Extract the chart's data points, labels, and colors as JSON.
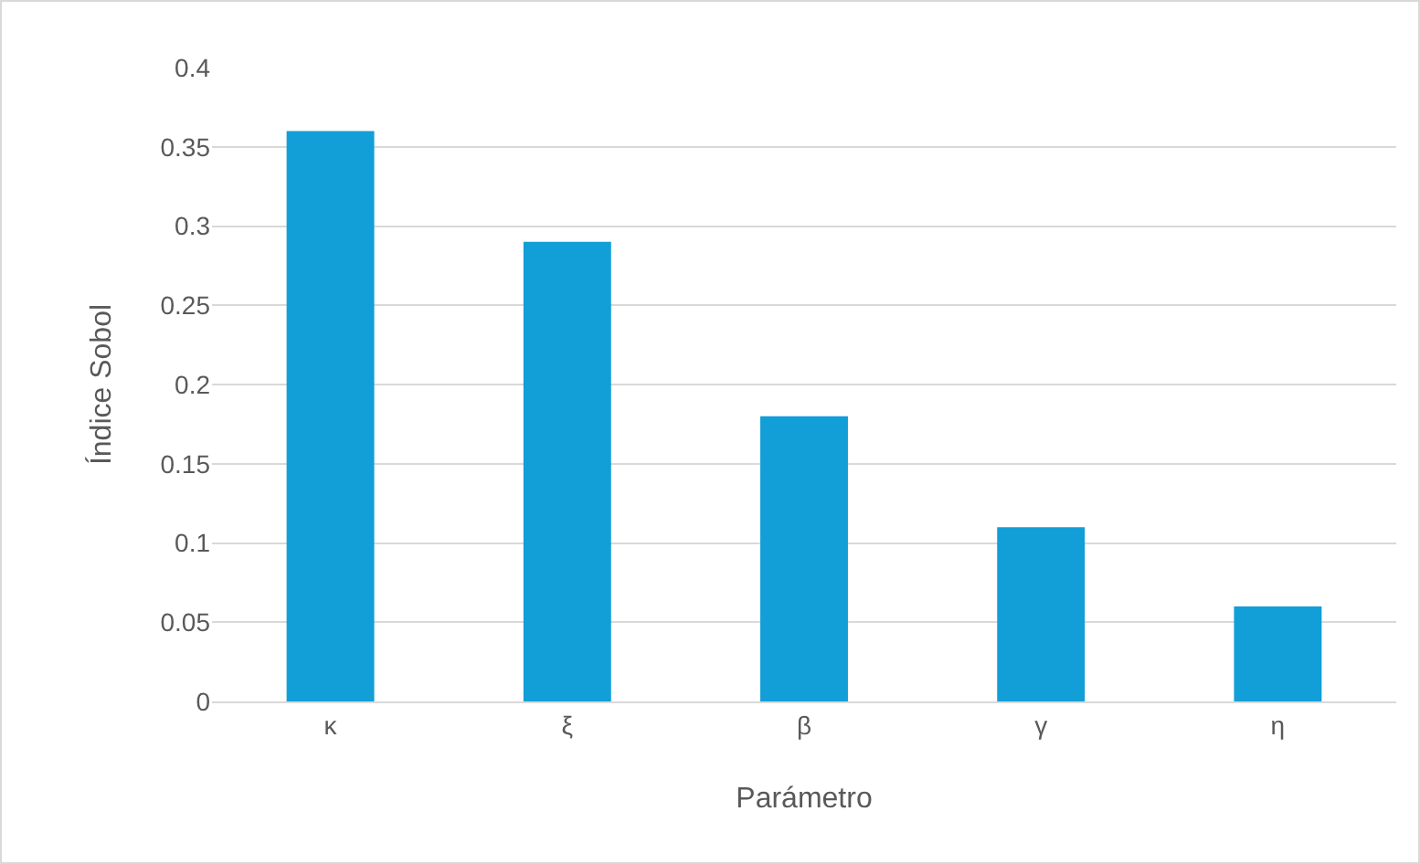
{
  "chart_data": {
    "type": "bar",
    "xlabel": "Parámetro",
    "ylabel": "Índice Sobol",
    "categories": [
      "κ",
      "ξ",
      "β",
      "γ",
      "η"
    ],
    "values": [
      0.36,
      0.29,
      0.18,
      0.11,
      0.06
    ],
    "color": "#129ed6",
    "ylim": [
      0,
      0.4
    ],
    "yticks": [
      0,
      0.05,
      0.1,
      0.15,
      0.2,
      0.25,
      0.3,
      0.35,
      0.4
    ],
    "grid": "y"
  }
}
